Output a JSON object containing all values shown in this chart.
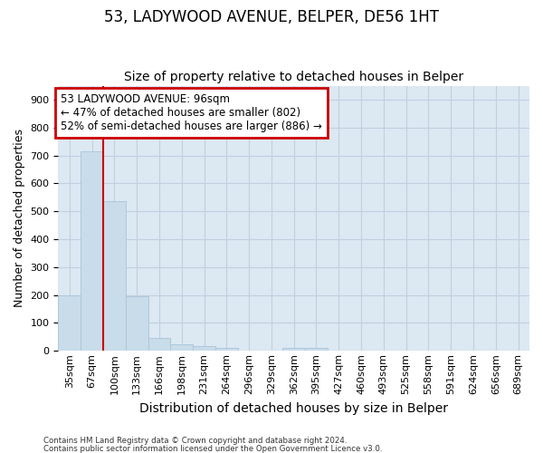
{
  "title1": "53, LADYWOOD AVENUE, BELPER, DE56 1HT",
  "title2": "Size of property relative to detached houses in Belper",
  "xlabel": "Distribution of detached houses by size in Belper",
  "ylabel": "Number of detached properties",
  "footer1": "Contains HM Land Registry data © Crown copyright and database right 2024.",
  "footer2": "Contains public sector information licensed under the Open Government Licence v3.0.",
  "annotation_line1": "53 LADYWOOD AVENUE: 96sqm",
  "annotation_line2": "← 47% of detached houses are smaller (802)",
  "annotation_line3": "52% of semi-detached houses are larger (886) →",
  "bin_labels": [
    "35sqm",
    "67sqm",
    "100sqm",
    "133sqm",
    "166sqm",
    "198sqm",
    "231sqm",
    "264sqm",
    "296sqm",
    "329sqm",
    "362sqm",
    "395sqm",
    "427sqm",
    "460sqm",
    "493sqm",
    "525sqm",
    "558sqm",
    "591sqm",
    "624sqm",
    "656sqm",
    "689sqm"
  ],
  "bar_values": [
    200,
    715,
    535,
    195,
    45,
    22,
    18,
    12,
    0,
    0,
    12,
    12,
    0,
    0,
    0,
    0,
    0,
    0,
    0,
    0,
    0
  ],
  "bar_color": "#c9dcea",
  "bar_edgecolor": "#aac4d8",
  "vline_color": "#cc0000",
  "vline_pos": 1.5,
  "ylim": [
    0,
    950
  ],
  "yticks": [
    0,
    100,
    200,
    300,
    400,
    500,
    600,
    700,
    800,
    900
  ],
  "grid_color": "#c0d0e0",
  "bg_color": "#dce8f2",
  "annotation_box_color": "#cc0000",
  "title1_fontsize": 12,
  "title2_fontsize": 10,
  "xlabel_fontsize": 10,
  "ylabel_fontsize": 9,
  "tick_fontsize": 8,
  "annotation_fontsize": 8.5
}
